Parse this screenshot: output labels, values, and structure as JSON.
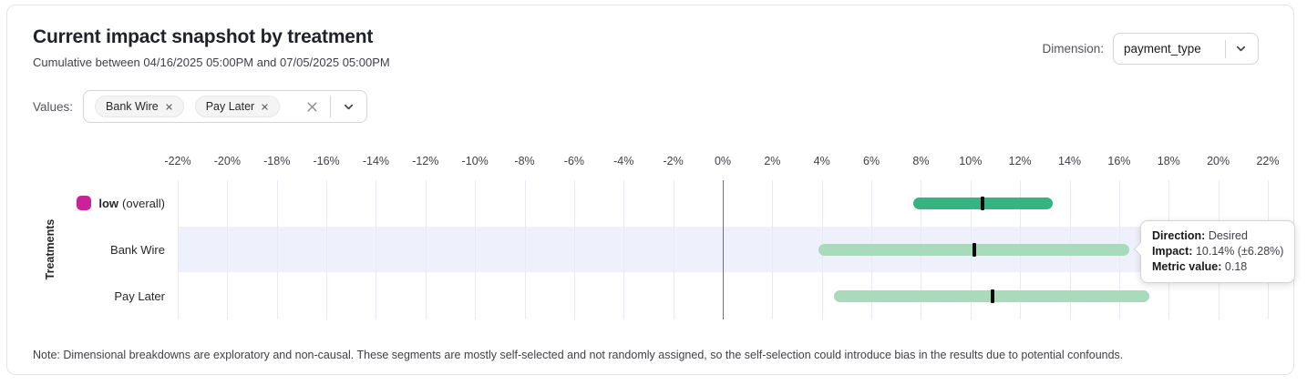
{
  "header": {
    "title": "Current impact snapshot by treatment",
    "subtitle": "Cumulative between 04/16/2025 05:00PM and 07/05/2025 05:00PM"
  },
  "dimension": {
    "label": "Dimension:",
    "selected": "payment_type"
  },
  "filters": {
    "label": "Values:",
    "chips": [
      "Bank Wire",
      "Pay Later"
    ]
  },
  "chart_data": {
    "type": "range-bar",
    "ylabel": "Treatments",
    "axis": {
      "min": -22,
      "max": 22,
      "step": 2,
      "tick_suffix": "%",
      "ticks": [
        "-22%",
        "-20%",
        "-18%",
        "-16%",
        "-14%",
        "-12%",
        "-10%",
        "-8%",
        "-6%",
        "-4%",
        "-2%",
        "0%",
        "2%",
        "4%",
        "6%",
        "8%",
        "10%",
        "12%",
        "14%",
        "16%",
        "18%",
        "20%",
        "22%"
      ]
    },
    "zero_line_at": 0,
    "rows": [
      {
        "label": "low",
        "note": "(overall)",
        "swatch_color": "#cb2199",
        "bar_color": "#35b481",
        "impact_pct": 10.5,
        "ci_low_pct": 7.7,
        "ci_high_pct": 13.3,
        "highlighted": false
      },
      {
        "label": "Bank Wire",
        "note": null,
        "swatch_color": null,
        "bar_color": "#a8dabb",
        "impact_pct": 10.14,
        "ci_low_pct": 3.86,
        "ci_high_pct": 16.42,
        "highlighted": true
      },
      {
        "label": "Pay Later",
        "note": null,
        "swatch_color": null,
        "bar_color": "#a8dabb",
        "impact_pct": 10.9,
        "ci_low_pct": 4.5,
        "ci_high_pct": 17.2,
        "highlighted": false
      }
    ],
    "tooltip": {
      "direction_label": "Direction:",
      "direction_value": "Desired",
      "impact_label": "Impact:",
      "impact_value": "10.14% (±6.28%)",
      "metric_label": "Metric value:",
      "metric_value": "0.18"
    },
    "colors": {
      "marker": "#0b0b0b",
      "highlight_band": "#eef0fb",
      "gridline": "#e9eaf2",
      "zero_line": "#70707a"
    }
  },
  "note": "Note: Dimensional breakdowns are exploratory and non-causal. These segments are mostly self-selected and not randomly assigned, so the self-selection could introduce bias in the results due to potential confounds."
}
